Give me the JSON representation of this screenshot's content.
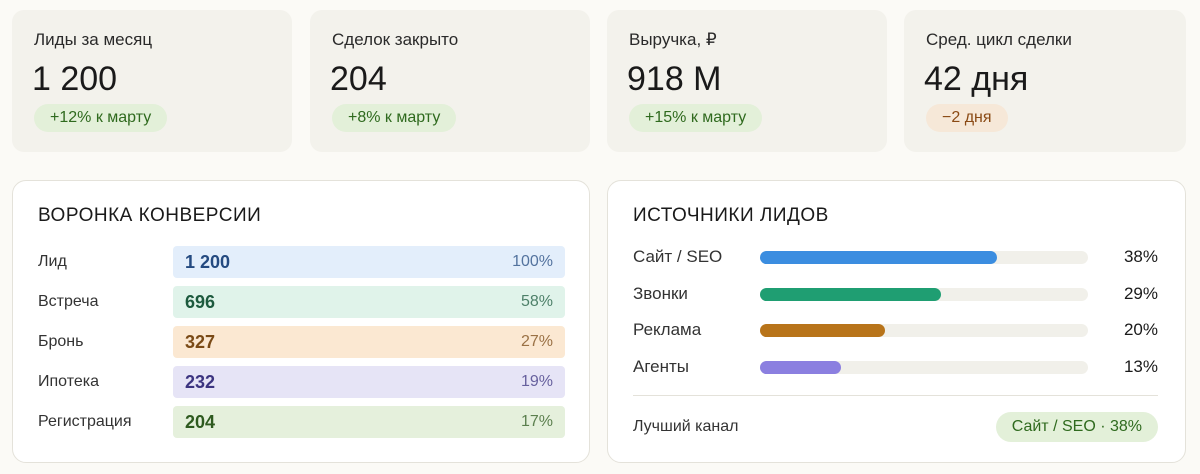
{
  "kpis": [
    {
      "label": "Лиды за месяц",
      "value": "1 200",
      "delta": "+12% к марту"
    },
    {
      "label": "Сделок закрыто",
      "value": "204",
      "delta": "+8% к марту"
    },
    {
      "label": "Выручка, ₽",
      "value": "918 M",
      "delta": "+15% к марту"
    },
    {
      "label": "Сред. цикл сделки",
      "value": "42 дня",
      "delta": "−2 дня"
    }
  ],
  "funnel": {
    "title": "ВОРОНКА КОНВЕРСИИ",
    "rows": [
      {
        "stage": "Лид",
        "count": "1 200",
        "share": "100%"
      },
      {
        "stage": "Встреча",
        "count": "696",
        "share": "58%"
      },
      {
        "stage": "Бронь",
        "count": "327",
        "share": "27%"
      },
      {
        "stage": "Ипотека",
        "count": "232",
        "share": "19%"
      },
      {
        "stage": "Регистрация",
        "count": "204",
        "share": "17%"
      }
    ]
  },
  "sources": {
    "title": "ИСТОЧНИКИ ЛИДОВ",
    "rows": [
      {
        "name": "Сайт / SEO",
        "value": 38,
        "value_label": "38%",
        "color": "#3b8de0"
      },
      {
        "name": "Звонки",
        "value": 29,
        "value_label": "29%",
        "color": "#1f9e72"
      },
      {
        "name": "Реклама",
        "value": 20,
        "value_label": "20%",
        "color": "#b8741a"
      },
      {
        "name": "Агенты",
        "value": 13,
        "value_label": "13%",
        "color": "#8b7fe0"
      }
    ],
    "best_label": "Лучший канал",
    "best_value": "Сайт / SEO · 38%"
  }
}
